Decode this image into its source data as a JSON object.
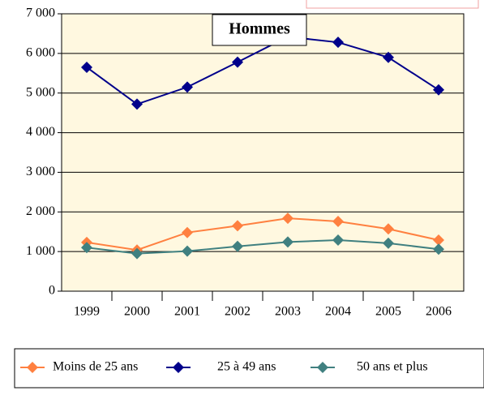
{
  "chart_data": {
    "type": "line",
    "title": "Hommes",
    "categories": [
      "1999",
      "2000",
      "2001",
      "2002",
      "2003",
      "2004",
      "2005",
      "2006"
    ],
    "series": [
      {
        "name": "Moins de 25 ans",
        "color": "#ff8040",
        "values": [
          1230,
          1040,
          1480,
          1650,
          1840,
          1760,
          1570,
          1290
        ]
      },
      {
        "name": "25 à 49 ans",
        "color": "#00008b",
        "values": [
          5650,
          4720,
          5150,
          5780,
          6420,
          6280,
          5900,
          5080
        ]
      },
      {
        "name": "50 ans et plus",
        "color": "#408080",
        "values": [
          1100,
          950,
          1010,
          1130,
          1240,
          1290,
          1210,
          1060
        ]
      }
    ],
    "ylim": [
      0,
      7000
    ],
    "yticks": [
      0,
      {
        "value": 1000,
        "label": "1 000"
      },
      {
        "value": 2000,
        "label": "2 000"
      },
      {
        "value": 3000,
        "label": "3 000"
      },
      {
        "value": 4000,
        "label": "4 000"
      },
      {
        "value": 5000,
        "label": "5 000"
      },
      {
        "value": 6000,
        "label": "6 000"
      },
      {
        "value": 7000,
        "label": "7 000"
      }
    ],
    "grid": true,
    "legend": "bottom"
  }
}
